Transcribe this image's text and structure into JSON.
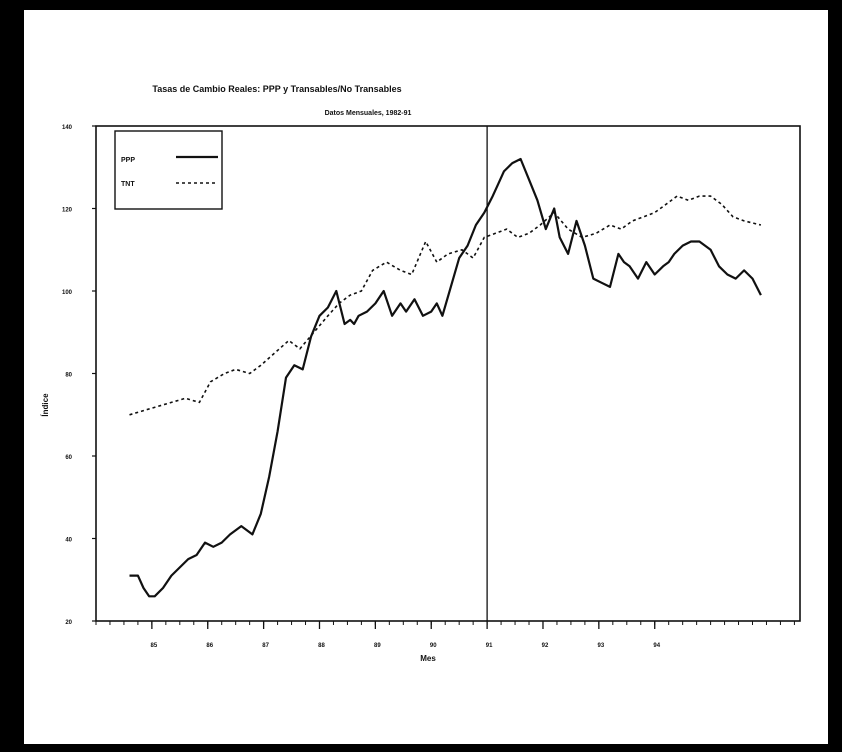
{
  "chart_data": {
    "type": "line",
    "title": "Tasas de Cambio Reales: PPP y Transables/No Transables",
    "subtitle": "Datos Mensuales, 1982-91",
    "xlabel": "Mes",
    "ylabel": "Índice",
    "x_ticks": [
      "85",
      "86",
      "87",
      "88",
      "89",
      "90",
      "91",
      "92",
      "93",
      "94"
    ],
    "y_ticks": [
      "20",
      "40",
      "60",
      "80",
      "100",
      "120",
      "140"
    ],
    "ylim": [
      20,
      140
    ],
    "xlim": [
      84.0,
      96.6
    ],
    "vertical_marker_x": 91,
    "grid": false,
    "legend_position": "top-left",
    "colors": {
      "ppp": "#111111",
      "tnt": "#111111",
      "axes": "#111111"
    },
    "series": [
      {
        "name": "PPP",
        "style": "solid",
        "x": [
          84.6,
          84.75,
          84.85,
          84.95,
          85.05,
          85.2,
          85.35,
          85.5,
          85.65,
          85.8,
          85.95,
          86.1,
          86.25,
          86.4,
          86.6,
          86.8,
          86.95,
          87.1,
          87.25,
          87.4,
          87.55,
          87.7,
          87.85,
          88.0,
          88.15,
          88.3,
          88.45,
          88.55,
          88.62,
          88.7,
          88.85,
          89.0,
          89.15,
          89.3,
          89.45,
          89.55,
          89.7,
          89.85,
          90.0,
          90.1,
          90.2,
          90.35,
          90.5,
          90.65,
          90.8,
          90.95,
          91.1,
          91.2,
          91.3,
          91.45,
          91.6,
          91.75,
          91.9,
          92.05,
          92.2,
          92.3,
          92.45,
          92.6,
          92.75,
          92.9,
          93.05,
          93.2,
          93.35,
          93.45,
          93.55,
          93.7,
          93.85,
          94.0,
          94.15,
          94.25,
          94.35,
          94.5,
          94.65,
          94.8,
          95.0,
          95.15,
          95.3,
          95.45,
          95.6,
          95.75,
          95.9
        ],
        "values": [
          31,
          31,
          28,
          26,
          26,
          28,
          31,
          33,
          35,
          36,
          39,
          38,
          39,
          41,
          43,
          41,
          46,
          55,
          66,
          79,
          82,
          81,
          89,
          94,
          96,
          100,
          92,
          93,
          92,
          94,
          95,
          97,
          100,
          94,
          97,
          95,
          98,
          94,
          95,
          97,
          94,
          101,
          108,
          111,
          116,
          119,
          123,
          126,
          129,
          131,
          132,
          127,
          122,
          115,
          120,
          113,
          109,
          117,
          111,
          103,
          102,
          101,
          109,
          107,
          106,
          103,
          107,
          104,
          106,
          107,
          109,
          111,
          112,
          112,
          110,
          106,
          104,
          103,
          105,
          103,
          99
        ]
      },
      {
        "name": "TNT",
        "style": "dotted",
        "x": [
          84.6,
          84.85,
          85.1,
          85.35,
          85.6,
          85.85,
          86.05,
          86.3,
          86.5,
          86.75,
          86.95,
          87.2,
          87.45,
          87.65,
          87.9,
          88.15,
          88.35,
          88.55,
          88.75,
          88.95,
          89.2,
          89.45,
          89.65,
          89.9,
          90.1,
          90.3,
          90.55,
          90.75,
          90.95,
          91.15,
          91.35,
          91.55,
          91.75,
          91.95,
          92.2,
          92.45,
          92.7,
          92.95,
          93.2,
          93.4,
          93.6,
          93.8,
          94.0,
          94.2,
          94.4,
          94.6,
          94.8,
          95.0,
          95.2,
          95.4,
          95.6,
          95.9
        ],
        "values": [
          70,
          71,
          72,
          73,
          74,
          73,
          78,
          80,
          81,
          80,
          82,
          85,
          88,
          86,
          90,
          94,
          97,
          99,
          100,
          105,
          107,
          105,
          104,
          112,
          107,
          109,
          110,
          108,
          113,
          114,
          115,
          113,
          114,
          116,
          119,
          115,
          113,
          114,
          116,
          115,
          117,
          118,
          119,
          121,
          123,
          122,
          123,
          123,
          121,
          118,
          117,
          116
        ]
      }
    ]
  }
}
